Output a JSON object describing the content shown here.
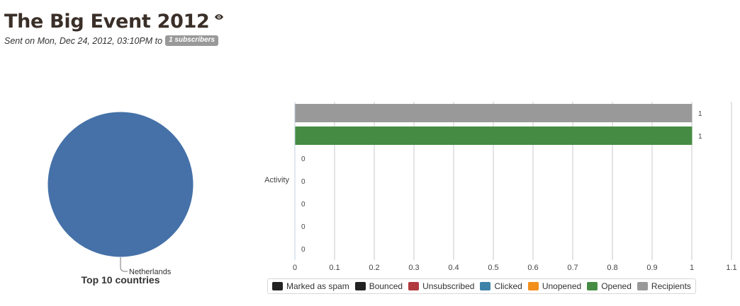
{
  "header": {
    "title": "The Big Event 2012",
    "sent_prefix": "Sent on Mon, Dec 24, 2012, 03:10PM to",
    "badge": "1 subscribers"
  },
  "chart_data": [
    {
      "type": "pie",
      "title": "Top 10 countries",
      "slices": [
        {
          "label": "Netherlands",
          "value": 100,
          "color": "#4571a8"
        }
      ]
    },
    {
      "type": "bar",
      "orientation": "horizontal",
      "categories": [
        "Activity"
      ],
      "series": [
        {
          "name": "Recipients",
          "values": [
            1
          ],
          "color": "#999999"
        },
        {
          "name": "Opened",
          "values": [
            1
          ],
          "color": "#468b43"
        },
        {
          "name": "Unopened",
          "values": [
            0
          ],
          "color": "#f28f1b"
        },
        {
          "name": "Clicked",
          "values": [
            0
          ],
          "color": "#3f82a8"
        },
        {
          "name": "Unsubscribed",
          "values": [
            0
          ],
          "color": "#b03a3e"
        },
        {
          "name": "Bounced",
          "values": [
            0
          ],
          "color": "#222222"
        },
        {
          "name": "Marked as spam",
          "values": [
            0
          ],
          "color": "#222222"
        }
      ],
      "data_labels": [
        "1",
        "1",
        "0",
        "0",
        "0",
        "0",
        "0"
      ],
      "xlim": [
        0,
        1.1
      ],
      "xticks": [
        "0",
        "0.1",
        "0.2",
        "0.3",
        "0.4",
        "0.5",
        "0.6",
        "0.7",
        "0.8",
        "0.9",
        "1",
        "1.1"
      ],
      "grid": true,
      "legend_position": "bottom",
      "legend": [
        {
          "name": "Marked as spam",
          "color": "#222222"
        },
        {
          "name": "Bounced",
          "color": "#222222"
        },
        {
          "name": "Unsubscribed",
          "color": "#b03a3e"
        },
        {
          "name": "Clicked",
          "color": "#3f82a8"
        },
        {
          "name": "Unopened",
          "color": "#f28f1b"
        },
        {
          "name": "Opened",
          "color": "#468b43"
        },
        {
          "name": "Recipients",
          "color": "#999999"
        }
      ]
    }
  ]
}
